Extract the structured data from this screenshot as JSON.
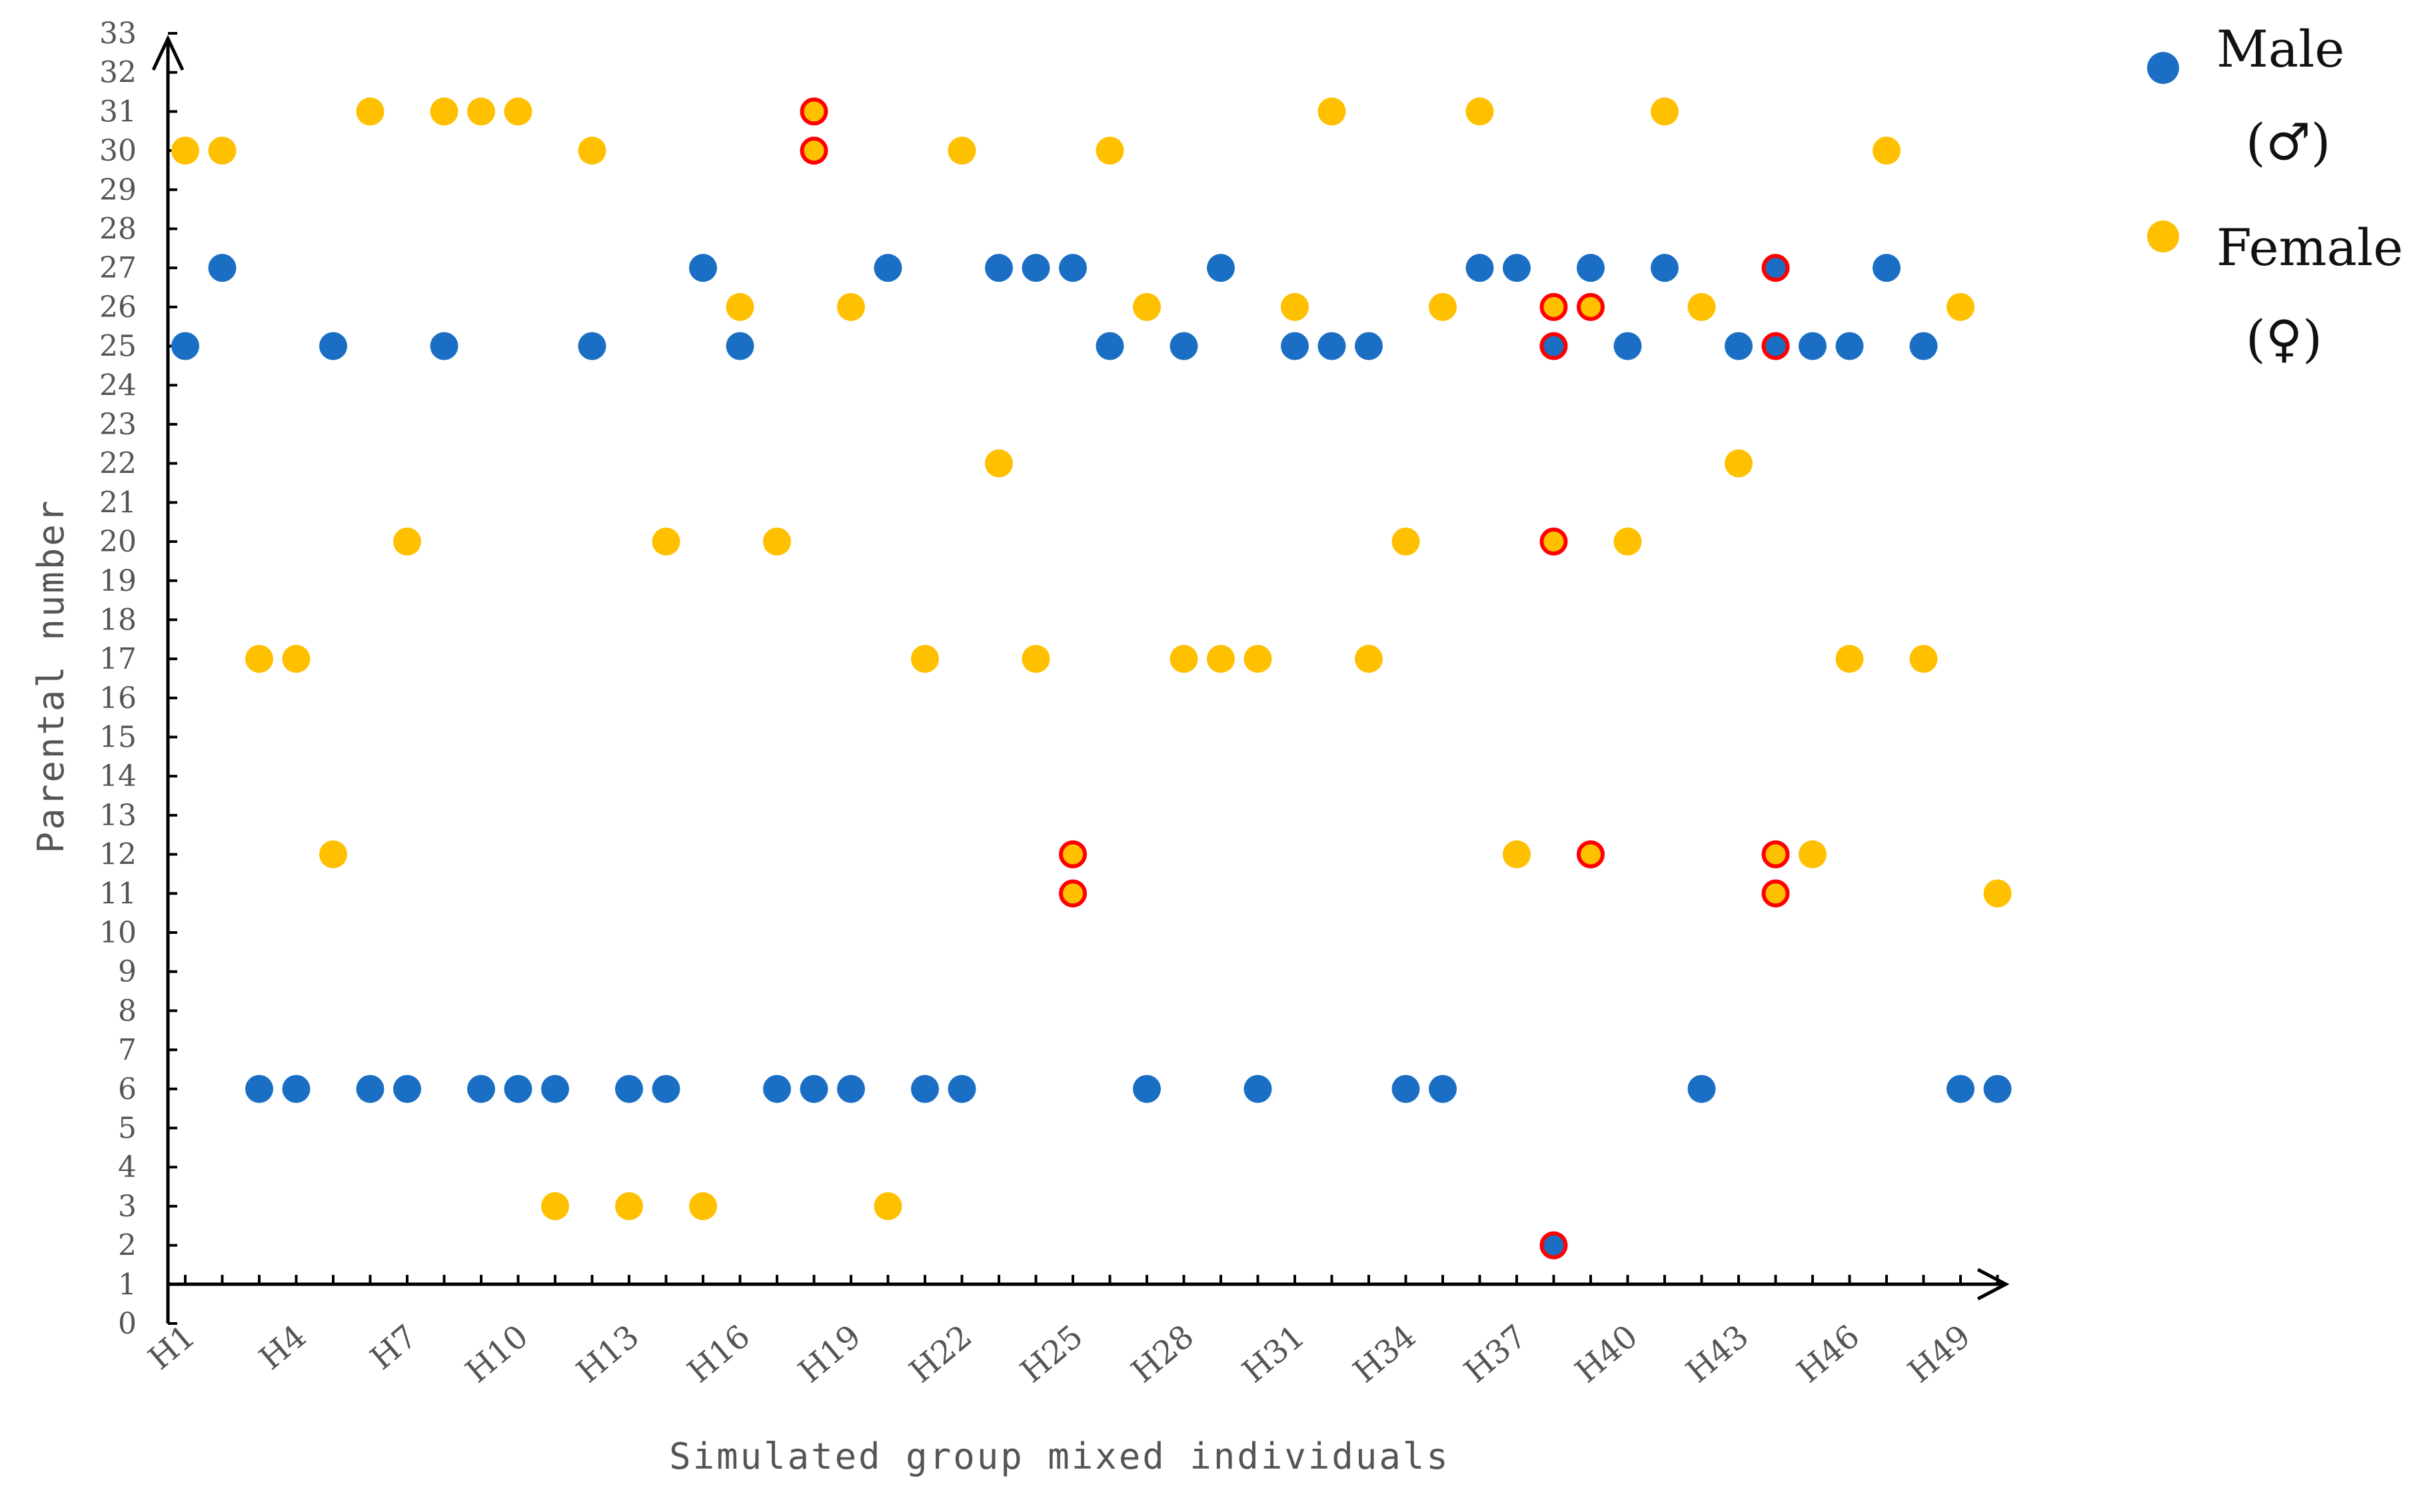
{
  "chart_data": {
    "type": "scatter",
    "xlabel": "Simulated group mixed individuals",
    "ylabel": "Parental number",
    "ylim": [
      0,
      33
    ],
    "yticks": [
      "0",
      "1",
      "2",
      "3",
      "4",
      "5",
      "6",
      "7",
      "8",
      "9",
      "10",
      "11",
      "12",
      "13",
      "14",
      "15",
      "16",
      "17",
      "18",
      "19",
      "20",
      "21",
      "22",
      "23",
      "24",
      "25",
      "26",
      "27",
      "28",
      "29",
      "30",
      "31",
      "32",
      "33"
    ],
    "x_categories": [
      "H1",
      "H2",
      "H3",
      "H4",
      "H5",
      "H6",
      "H7",
      "H8",
      "H9",
      "H10",
      "H11",
      "H12",
      "H13",
      "H14",
      "H15",
      "H16",
      "H17",
      "H18",
      "H19",
      "H20",
      "H21",
      "H22",
      "H23",
      "H24",
      "H25",
      "H26",
      "H27",
      "H28",
      "H29",
      "H30",
      "H31",
      "H32",
      "H33",
      "H34",
      "H35",
      "H36",
      "H37",
      "H38",
      "H39",
      "H40",
      "H41",
      "H42",
      "H43",
      "H44",
      "H45",
      "H46",
      "H47",
      "H48",
      "H49",
      "H50"
    ],
    "x_tick_labels": [
      "H1",
      "H4",
      "H7",
      "H10",
      "H13",
      "H16",
      "H19",
      "H22",
      "H25",
      "H28",
      "H31",
      "H34",
      "H37",
      "H40",
      "H43",
      "H46",
      "H49"
    ],
    "highlight_color": "#ff0000",
    "series": [
      {
        "name": "Male",
        "symbol": "(♂)",
        "color": "#1a6fc4",
        "points": [
          {
            "x": "H1",
            "y": 25
          },
          {
            "x": "H2",
            "y": 27
          },
          {
            "x": "H3",
            "y": 6
          },
          {
            "x": "H4",
            "y": 6
          },
          {
            "x": "H5",
            "y": 25
          },
          {
            "x": "H6",
            "y": 6
          },
          {
            "x": "H7",
            "y": 6
          },
          {
            "x": "H8",
            "y": 25
          },
          {
            "x": "H9",
            "y": 6
          },
          {
            "x": "H10",
            "y": 6
          },
          {
            "x": "H11",
            "y": 6
          },
          {
            "x": "H12",
            "y": 25
          },
          {
            "x": "H13",
            "y": 6
          },
          {
            "x": "H14",
            "y": 6
          },
          {
            "x": "H15",
            "y": 27
          },
          {
            "x": "H16",
            "y": 25
          },
          {
            "x": "H17",
            "y": 6
          },
          {
            "x": "H18",
            "y": 6
          },
          {
            "x": "H19",
            "y": 6
          },
          {
            "x": "H20",
            "y": 27
          },
          {
            "x": "H21",
            "y": 6
          },
          {
            "x": "H22",
            "y": 6
          },
          {
            "x": "H23",
            "y": 27
          },
          {
            "x": "H24",
            "y": 27
          },
          {
            "x": "H25",
            "y": 27
          },
          {
            "x": "H26",
            "y": 25
          },
          {
            "x": "H27",
            "y": 6
          },
          {
            "x": "H28",
            "y": 25
          },
          {
            "x": "H29",
            "y": 27
          },
          {
            "x": "H30",
            "y": 6
          },
          {
            "x": "H31",
            "y": 25
          },
          {
            "x": "H32",
            "y": 25
          },
          {
            "x": "H33",
            "y": 25
          },
          {
            "x": "H34",
            "y": 6
          },
          {
            "x": "H35",
            "y": 6
          },
          {
            "x": "H36",
            "y": 27
          },
          {
            "x": "H37",
            "y": 27
          },
          {
            "x": "H38",
            "y": 25,
            "highlight": true
          },
          {
            "x": "H38",
            "y": 2,
            "highlight": true
          },
          {
            "x": "H39",
            "y": 27
          },
          {
            "x": "H40",
            "y": 25
          },
          {
            "x": "H41",
            "y": 27
          },
          {
            "x": "H42",
            "y": 6
          },
          {
            "x": "H43",
            "y": 25
          },
          {
            "x": "H44",
            "y": 27,
            "highlight": true
          },
          {
            "x": "H44",
            "y": 25,
            "highlight": true
          },
          {
            "x": "H45",
            "y": 25
          },
          {
            "x": "H46",
            "y": 25
          },
          {
            "x": "H47",
            "y": 27
          },
          {
            "x": "H48",
            "y": 25
          },
          {
            "x": "H49",
            "y": 6
          },
          {
            "x": "H50",
            "y": 6
          }
        ]
      },
      {
        "name": "Female",
        "symbol": "(♀)",
        "color": "#ffc000",
        "points": [
          {
            "x": "H1",
            "y": 30
          },
          {
            "x": "H2",
            "y": 30
          },
          {
            "x": "H3",
            "y": 17
          },
          {
            "x": "H4",
            "y": 17
          },
          {
            "x": "H5",
            "y": 12
          },
          {
            "x": "H6",
            "y": 31
          },
          {
            "x": "H7",
            "y": 20
          },
          {
            "x": "H8",
            "y": 31
          },
          {
            "x": "H9",
            "y": 31
          },
          {
            "x": "H10",
            "y": 31
          },
          {
            "x": "H11",
            "y": 3
          },
          {
            "x": "H12",
            "y": 30
          },
          {
            "x": "H13",
            "y": 3
          },
          {
            "x": "H14",
            "y": 20
          },
          {
            "x": "H15",
            "y": 3
          },
          {
            "x": "H16",
            "y": 26
          },
          {
            "x": "H17",
            "y": 20
          },
          {
            "x": "H18",
            "y": 31,
            "highlight": true
          },
          {
            "x": "H18",
            "y": 30,
            "highlight": true
          },
          {
            "x": "H19",
            "y": 26
          },
          {
            "x": "H20",
            "y": 3
          },
          {
            "x": "H21",
            "y": 17
          },
          {
            "x": "H22",
            "y": 30
          },
          {
            "x": "H23",
            "y": 22
          },
          {
            "x": "H24",
            "y": 17
          },
          {
            "x": "H25",
            "y": 12,
            "highlight": true
          },
          {
            "x": "H25",
            "y": 11,
            "highlight": true
          },
          {
            "x": "H26",
            "y": 30
          },
          {
            "x": "H27",
            "y": 26
          },
          {
            "x": "H28",
            "y": 17
          },
          {
            "x": "H29",
            "y": 17
          },
          {
            "x": "H30",
            "y": 17
          },
          {
            "x": "H31",
            "y": 26
          },
          {
            "x": "H32",
            "y": 31
          },
          {
            "x": "H33",
            "y": 17
          },
          {
            "x": "H34",
            "y": 20
          },
          {
            "x": "H35",
            "y": 26
          },
          {
            "x": "H36",
            "y": 31
          },
          {
            "x": "H37",
            "y": 12
          },
          {
            "x": "H38",
            "y": 26,
            "highlight": true
          },
          {
            "x": "H38",
            "y": 20,
            "highlight": true
          },
          {
            "x": "H39",
            "y": 26,
            "highlight": true
          },
          {
            "x": "H39",
            "y": 12,
            "highlight": true
          },
          {
            "x": "H40",
            "y": 20
          },
          {
            "x": "H41",
            "y": 31
          },
          {
            "x": "H42",
            "y": 26
          },
          {
            "x": "H43",
            "y": 22
          },
          {
            "x": "H44",
            "y": 12,
            "highlight": true
          },
          {
            "x": "H44",
            "y": 11,
            "highlight": true
          },
          {
            "x": "H45",
            "y": 12
          },
          {
            "x": "H46",
            "y": 17
          },
          {
            "x": "H47",
            "y": 30
          },
          {
            "x": "H48",
            "y": 17
          },
          {
            "x": "H49",
            "y": 26
          },
          {
            "x": "H50",
            "y": 11
          }
        ]
      }
    ]
  }
}
